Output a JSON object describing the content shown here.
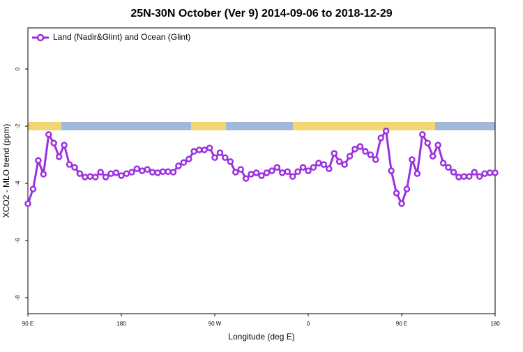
{
  "chart_data": {
    "type": "line",
    "title": "25N-30N October (Ver 9)   2014-09-06 to 2018-12-29",
    "x_label": "Longitude (deg E)",
    "y_label": "XCO2 - MLO trend (ppm)",
    "x": [
      90,
      95,
      100,
      105,
      110,
      115,
      120,
      125,
      130,
      135,
      140,
      145,
      150,
      155,
      160,
      165,
      170,
      175,
      180,
      185,
      190,
      195,
      200,
      205,
      210,
      215,
      220,
      225,
      230,
      235,
      240,
      245,
      250,
      255,
      260,
      265,
      270,
      275,
      280,
      285,
      290,
      295,
      300,
      305,
      310,
      315,
      320,
      325,
      330,
      335,
      340,
      345,
      350,
      355,
      360,
      365,
      370,
      375,
      380,
      385,
      390,
      395,
      400,
      405,
      410,
      415,
      420,
      425,
      430,
      435,
      440,
      445,
      450,
      455,
      460,
      465,
      470,
      475,
      480,
      485,
      490,
      495,
      500,
      505,
      510,
      515,
      520,
      525,
      530,
      535,
      540
    ],
    "series": [
      {
        "name": "Land (Nadir&Glint) and Ocean (Glint)",
        "color": "#9b30e0",
        "values": [
          -4.71,
          -4.2,
          -3.2,
          -3.68,
          -2.29,
          -2.59,
          -3.07,
          -2.66,
          -3.34,
          -3.44,
          -3.66,
          -3.78,
          -3.76,
          -3.78,
          -3.61,
          -3.78,
          -3.66,
          -3.63,
          -3.73,
          -3.66,
          -3.61,
          -3.49,
          -3.56,
          -3.51,
          -3.61,
          -3.63,
          -3.59,
          -3.59,
          -3.61,
          -3.39,
          -3.27,
          -3.15,
          -2.88,
          -2.83,
          -2.83,
          -2.76,
          -3.1,
          -2.93,
          -3.1,
          -3.24,
          -3.61,
          -3.51,
          -3.83,
          -3.68,
          -3.63,
          -3.73,
          -3.63,
          -3.56,
          -3.44,
          -3.63,
          -3.59,
          -3.76,
          -3.59,
          -3.44,
          -3.56,
          -3.44,
          -3.29,
          -3.34,
          -3.49,
          -2.95,
          -3.24,
          -3.34,
          -3.05,
          -2.8,
          -2.71,
          -2.88,
          -3,
          -3.17,
          -2.41,
          -2.17,
          -3.56,
          -4.34,
          -4.71,
          -4.2,
          -3.17,
          -3.66,
          -2.29,
          -2.59,
          -3.05,
          -2.66,
          -3.29,
          -3.44,
          -3.61,
          -3.78,
          -3.76,
          -3.76,
          -3.61,
          -3.76,
          -3.66,
          -3.63,
          -3.63
        ]
      }
    ],
    "xlim": [
      90,
      540
    ],
    "xticks": [
      {
        "value": 90,
        "label": "90 E"
      },
      {
        "value": 180,
        "label": "180"
      },
      {
        "value": 270,
        "label": "90 W"
      },
      {
        "value": 360,
        "label": "0"
      },
      {
        "value": 450,
        "label": "90 E"
      },
      {
        "value": 540,
        "label": "180"
      }
    ],
    "ylim": [
      -8.56,
      1.44
    ],
    "yticks": [
      0,
      -2,
      -4,
      -6,
      -8
    ],
    "legend": "top-left"
  }
}
